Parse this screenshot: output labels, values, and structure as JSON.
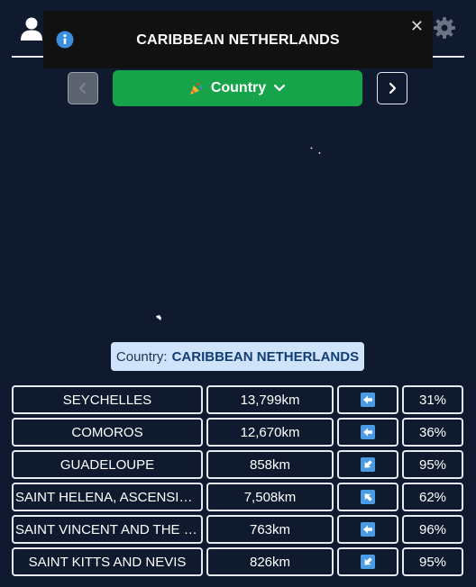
{
  "header": {
    "user_icon": "user-icon",
    "settings_icon": "gear-icon"
  },
  "toast": {
    "icon": "info-icon",
    "message": "CARIBBEAN NETHERLANDS",
    "close_label": "✕"
  },
  "nav": {
    "mode_label": "Country",
    "mode_icon": "party-popper-icon",
    "prev_icon": "chevron-left-icon",
    "next_icon": "chevron-right-icon"
  },
  "answer": {
    "prefix": "Country:",
    "value": "CARIBBEAN NETHERLANDS"
  },
  "guesses": [
    {
      "name": "SEYCHELLES",
      "distance": "13,799km",
      "direction": "west",
      "percent": "31%"
    },
    {
      "name": "COMOROS",
      "distance": "12,670km",
      "direction": "west",
      "percent": "36%"
    },
    {
      "name": "GUADELOUPE",
      "distance": "858km",
      "direction": "southwest",
      "percent": "95%"
    },
    {
      "name": "SAINT HELENA, ASCENSION AND TRISTAN DA CUNHA",
      "distance": "7,508km",
      "direction": "northwest",
      "percent": "62%"
    },
    {
      "name": "SAINT VINCENT AND THE GRENADINES",
      "distance": "763km",
      "direction": "west",
      "percent": "96%"
    },
    {
      "name": "SAINT KITTS AND NEVIS",
      "distance": "826km",
      "direction": "southwest",
      "percent": "95%"
    }
  ],
  "colors": {
    "background": "#0f1a2e",
    "mode_button": "#16a34a",
    "arrow_badge": "#4a9be3",
    "answer_bg": "#cfe4fb"
  }
}
